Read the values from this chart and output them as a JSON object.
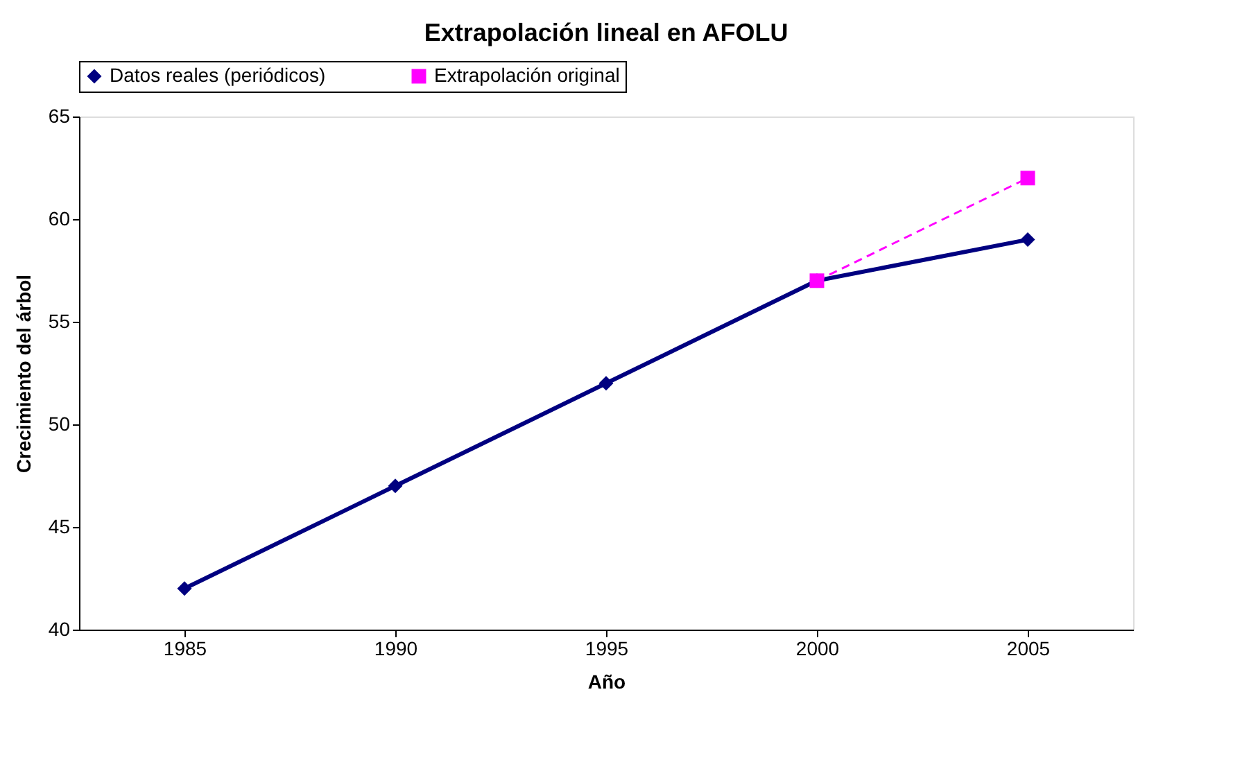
{
  "chart_data": {
    "type": "line",
    "title": "Extrapolación lineal en AFOLU",
    "xlabel": "Año",
    "ylabel": "Crecimiento del árbol",
    "categories": [
      "1985",
      "1990",
      "1995",
      "2000",
      "2005"
    ],
    "series": [
      {
        "name": "Datos reales (periódicos)",
        "color": "#000080",
        "marker": "diamond",
        "line_style": "solid",
        "values": [
          42,
          47,
          52,
          57,
          59
        ]
      },
      {
        "name": "Extrapolación original",
        "color": "#ff00ff",
        "marker": "square",
        "line_style": "dashed",
        "values": [
          null,
          null,
          null,
          57,
          62
        ]
      }
    ],
    "ylim": [
      40,
      65
    ],
    "yticks": [
      40,
      45,
      50,
      55,
      60,
      65
    ],
    "grid": false,
    "legend": "top"
  }
}
